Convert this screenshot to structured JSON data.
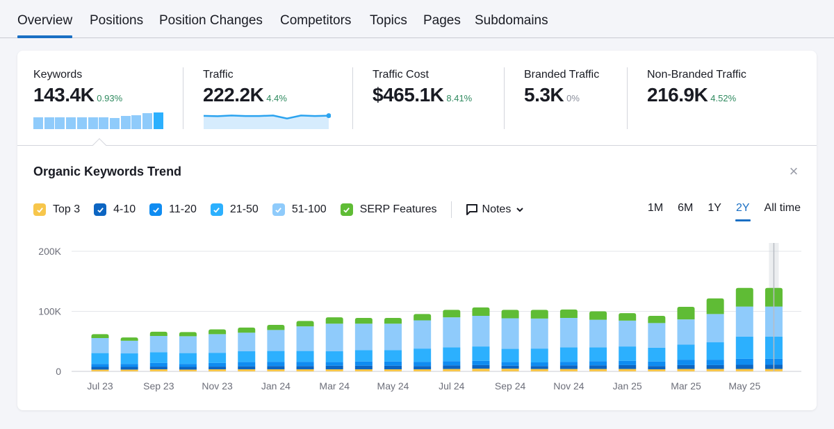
{
  "tabs": [
    {
      "label": "Overview",
      "active": true
    },
    {
      "label": "Positions",
      "active": false
    },
    {
      "label": "Position Changes",
      "active": false
    },
    {
      "label": "Competitors",
      "active": false
    },
    {
      "label": "Topics",
      "active": false
    },
    {
      "label": "Pages",
      "active": false
    },
    {
      "label": "Subdomains",
      "active": false
    }
  ],
  "metrics": [
    {
      "label": "Keywords",
      "value": "143.4K",
      "delta": "0.93%",
      "delta_type": "positive"
    },
    {
      "label": "Traffic",
      "value": "222.2K",
      "delta": "4.4%",
      "delta_type": "positive"
    },
    {
      "label": "Traffic Cost",
      "value": "$465.1K",
      "delta": "8.41%",
      "delta_type": "positive"
    },
    {
      "label": "Branded Traffic",
      "value": "5.3K",
      "delta": "0%",
      "delta_type": "neutral"
    },
    {
      "label": "Non-Branded Traffic",
      "value": "216.9K",
      "delta": "4.52%",
      "delta_type": "positive"
    }
  ],
  "keywords_mini_trend": [
    0.7,
    0.7,
    0.7,
    0.7,
    0.7,
    0.7,
    0.7,
    0.68,
    0.78,
    0.85,
    0.95,
    1.0
  ],
  "traffic_mini_trend": [
    0.72,
    0.7,
    0.74,
    0.71,
    0.71,
    0.74,
    0.56,
    0.74,
    0.71,
    0.73
  ],
  "trend_panel": {
    "title": "Organic Keywords Trend",
    "close_icon": "close-icon",
    "notes_label": "Notes",
    "periods": [
      {
        "label": "1M",
        "active": false
      },
      {
        "label": "6M",
        "active": false
      },
      {
        "label": "1Y",
        "active": false
      },
      {
        "label": "2Y",
        "active": true
      },
      {
        "label": "All time",
        "active": false
      }
    ]
  },
  "colors": {
    "accent": "#1a6fc4",
    "positive": "#2f8a5f",
    "top3": "#f7c64b",
    "pos_4_10": "#0c65c2",
    "pos_11_20": "#0f8cf1",
    "pos_21_50": "#2cb0fe",
    "pos_51_100": "#8fcbfb",
    "serp": "#5fbc35"
  },
  "chart_data": {
    "type": "bar",
    "stacked": true,
    "title": "Organic Keywords Trend",
    "xlabel": "",
    "ylabel": "",
    "ylim": [
      0,
      200000
    ],
    "yticks": [
      0,
      100000,
      200000
    ],
    "ytick_labels": [
      "0",
      "100K",
      "200K"
    ],
    "grid": true,
    "legend": "top-left",
    "categories": [
      "Jul 23",
      "Aug 23",
      "Sep 23",
      "Oct 23",
      "Nov 23",
      "Dec 23",
      "Jan 24",
      "Feb 24",
      "Mar 24",
      "Apr 24",
      "May 24",
      "Jun 24",
      "Jul 24",
      "Aug 24",
      "Sep 24",
      "Oct 24",
      "Nov 24",
      "Dec 24",
      "Jan 25",
      "Feb 25",
      "Mar 25",
      "Apr 25",
      "May 25",
      "Jun 25"
    ],
    "xtick_labels": [
      "Jul 23",
      "Sep 23",
      "Nov 23",
      "Jan 24",
      "Mar 24",
      "May 24",
      "Jul 24",
      "Sep 24",
      "Nov 24",
      "Jan 25",
      "Mar 25",
      "May 25"
    ],
    "series": [
      {
        "name": "Top 3",
        "color": "#f7c64b",
        "values": [
          3000,
          3000,
          3500,
          3000,
          3500,
          3500,
          3500,
          3500,
          3500,
          3500,
          3500,
          3500,
          4000,
          4500,
          4500,
          4000,
          4000,
          4000,
          4000,
          3500,
          4000,
          4000,
          4000,
          4000
        ]
      },
      {
        "name": "4-10",
        "color": "#0c65c2",
        "values": [
          4500,
          4500,
          4500,
          4500,
          4500,
          5000,
          5500,
          5500,
          6000,
          6000,
          6000,
          5500,
          6000,
          6000,
          5000,
          5000,
          6000,
          6000,
          6500,
          5500,
          6500,
          6500,
          7000,
          7000
        ]
      },
      {
        "name": "11-20",
        "color": "#0f8cf1",
        "values": [
          5000,
          5000,
          6000,
          5000,
          6000,
          7000,
          7000,
          7000,
          6000,
          7000,
          7000,
          7000,
          7000,
          7000,
          6000,
          6000,
          6000,
          7000,
          7000,
          7500,
          9000,
          9000,
          10000,
          10000
        ]
      },
      {
        "name": "21-50",
        "color": "#2cb0fe",
        "values": [
          18000,
          17500,
          18000,
          18000,
          17000,
          18000,
          18000,
          18000,
          18000,
          19000,
          19000,
          22000,
          23000,
          24000,
          22000,
          23000,
          24000,
          23000,
          24000,
          23000,
          25000,
          29000,
          37000,
          37000
        ]
      },
      {
        "name": "51-100",
        "color": "#8fcbfb",
        "values": [
          25000,
          21000,
          27000,
          28000,
          31000,
          31000,
          35000,
          41000,
          46000,
          44000,
          44000,
          47000,
          50000,
          51000,
          51000,
          50000,
          49000,
          46000,
          43000,
          41000,
          42000,
          47000,
          50000,
          50000
        ]
      },
      {
        "name": "SERP Features",
        "color": "#5fbc35",
        "values": [
          6500,
          5500,
          7000,
          7000,
          8000,
          8500,
          8500,
          9000,
          10500,
          9500,
          9500,
          10500,
          12500,
          14000,
          14000,
          14500,
          14000,
          14000,
          12500,
          12000,
          21000,
          26000,
          31000,
          31000
        ]
      }
    ]
  }
}
